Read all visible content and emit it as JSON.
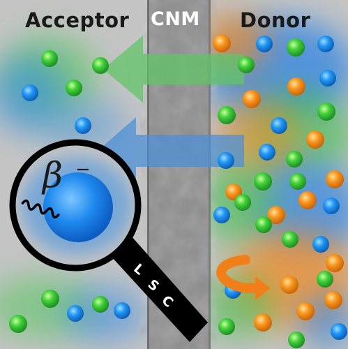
{
  "labels": {
    "acceptor": "Acceptor",
    "cnm": "CNM",
    "donor": "Donor",
    "beta": "β",
    "beta_charge": "−",
    "lsc": [
      "L",
      "S",
      "C"
    ]
  },
  "colors": {
    "background": "#c4c4c4",
    "membrane": "#8c8c8c",
    "blue": "#1e8ff0",
    "green": "#33c93a",
    "orange": "#f58a1e",
    "green_arrow": "#6ac26e",
    "blue_arrow": "#4a8fd8",
    "magnifier": "#000000"
  }
}
